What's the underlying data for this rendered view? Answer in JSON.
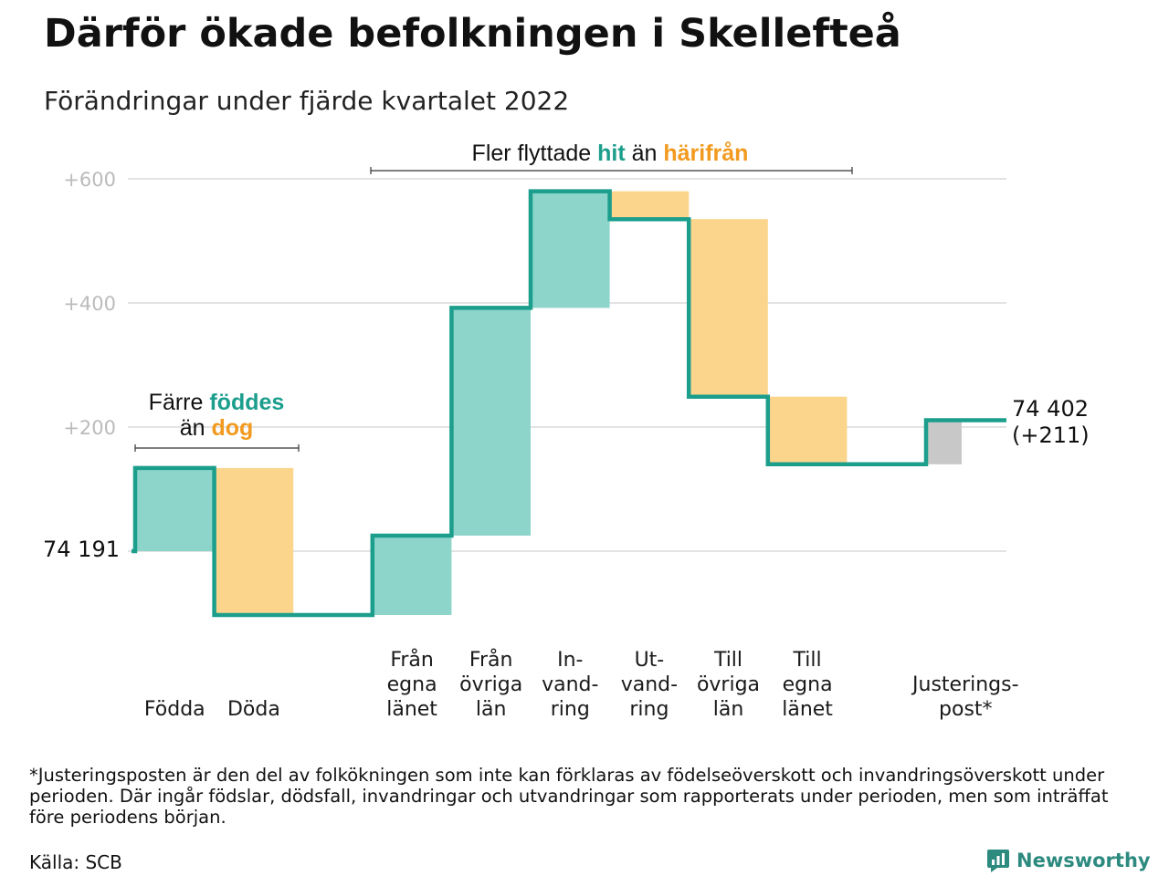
{
  "title": "Därför ökade befolkningen i Skellefteå",
  "subtitle": "Förändringar under fjärde kvartalet 2022",
  "chart_data": {
    "type": "waterfall",
    "baseline_value": 74191,
    "start_label": "74 191",
    "end_label_line1": "74 402",
    "end_label_line2": "(+211)",
    "y_ticks": [
      {
        "value": 600,
        "label": "+600"
      },
      {
        "value": 400,
        "label": "+400"
      },
      {
        "value": 200,
        "label": "+200"
      }
    ],
    "ylim": [
      -110,
      630
    ],
    "steps": [
      {
        "key": "fodda",
        "label_lines": [
          "Födda"
        ],
        "from": 0,
        "to": 134,
        "kind": "increase"
      },
      {
        "key": "doda",
        "label_lines": [
          "Döda"
        ],
        "from": 134,
        "to": -103,
        "kind": "decrease"
      },
      {
        "key": "gap",
        "label_lines": [],
        "from": -103,
        "to": -103,
        "kind": "none"
      },
      {
        "key": "fran-egna-lanet",
        "label_lines": [
          "Från",
          "egna",
          "länet"
        ],
        "from": -103,
        "to": 25,
        "kind": "increase"
      },
      {
        "key": "fran-ovriga-lan",
        "label_lines": [
          "Från",
          "övriga",
          "län"
        ],
        "from": 25,
        "to": 392,
        "kind": "increase"
      },
      {
        "key": "invandring",
        "label_lines": [
          "In-",
          "vand-",
          "ring"
        ],
        "from": 392,
        "to": 580,
        "kind": "increase"
      },
      {
        "key": "utvandring",
        "label_lines": [
          "Ut-",
          "vand-",
          "ring"
        ],
        "from": 580,
        "to": 535,
        "kind": "decrease"
      },
      {
        "key": "till-ovriga-lan",
        "label_lines": [
          "Till",
          "övriga",
          "län"
        ],
        "from": 535,
        "to": 249,
        "kind": "decrease"
      },
      {
        "key": "till-egna-lanet",
        "label_lines": [
          "Till",
          "egna",
          "länet"
        ],
        "from": 249,
        "to": 140,
        "kind": "decrease"
      },
      {
        "key": "gap2",
        "label_lines": [],
        "from": 140,
        "to": 140,
        "kind": "none"
      },
      {
        "key": "justeringspost",
        "label_lines": [
          "Justerings-",
          "post*"
        ],
        "from": 140,
        "to": 211,
        "kind": "adjustment"
      }
    ],
    "annotations": {
      "births": {
        "part1": "Färre ",
        "highlight1": "föddes",
        "line2_part1": "än ",
        "highlight2": "dog"
      },
      "migration": {
        "part1": "Fler flyttade ",
        "highlight1": "hit",
        "part2": " än ",
        "highlight2": "härifrån"
      }
    },
    "colors": {
      "increase": "#8dd5cb",
      "decrease": "#fbd58c",
      "adjustment": "#c8c8c8",
      "line": "#1b9e8c",
      "grid": "#e3e3e3",
      "teal_text": "#1b9e8c",
      "orange_text": "#f29a1f"
    }
  },
  "footnote": "*Justeringsposten är den del av folkökningen som inte kan förklaras av födelseöverskott och invandringsöverskott under perioden. Där ingår födslar, dödsfall, invandringar och utvandringar som rapporterats under perioden, men som inträffat före periodens början.",
  "source": "Källa: SCB",
  "brand": {
    "name": "Newsworthy",
    "icon": "newsworthy-logo-icon"
  }
}
